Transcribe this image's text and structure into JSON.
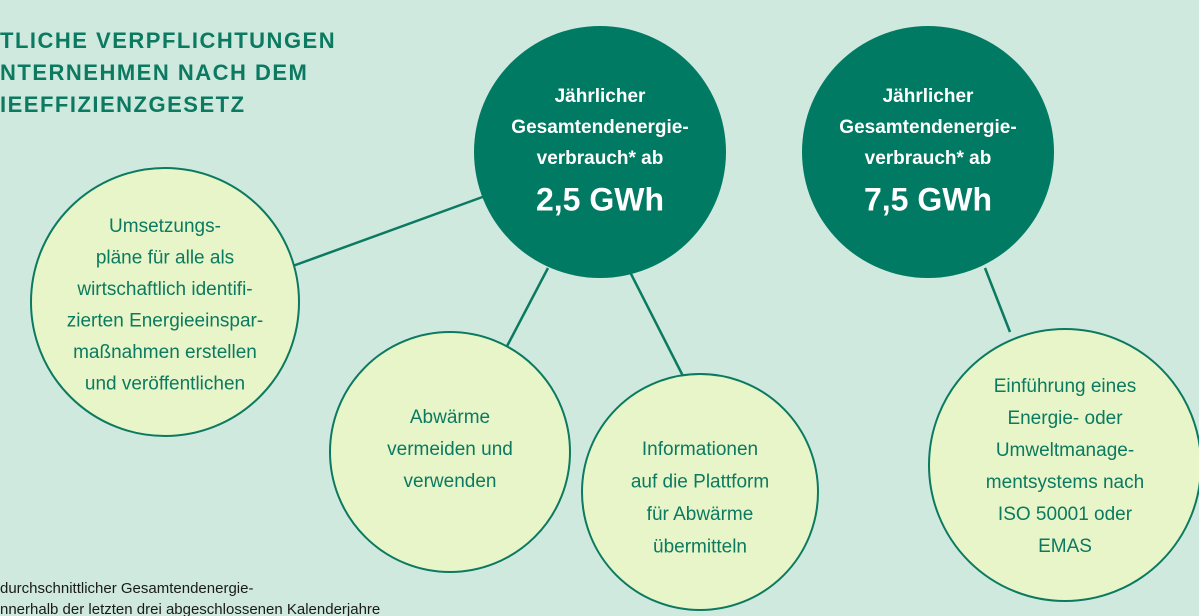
{
  "title": {
    "lines": [
      "TLICHE VERPFLICHTUNGEN",
      "NTERNEHMEN NACH DEM",
      "IEEFFIZIENZGESETZ"
    ]
  },
  "nodes": [
    {
      "lines": [
        "Jährlicher",
        "Gesamtendenergie-",
        "verbrauch* ab"
      ],
      "value": "2,5 GWh"
    },
    {
      "lines": [
        "Jährlicher",
        "Gesamtendenergie-",
        "verbrauch* ab"
      ],
      "value": "7,5 GWh"
    },
    {
      "lines": [
        "Umsetzungs-",
        "pläne für alle als",
        "wirtschaftlich identifi-",
        "zierten Energieeinspar-",
        "maßnahmen erstellen",
        "und veröffentlichen"
      ]
    },
    {
      "lines": [
        "Abwärme",
        "vermeiden und",
        "verwenden"
      ]
    },
    {
      "lines": [
        "Informationen",
        "auf die Plattform",
        "für Abwärme",
        "übermitteln"
      ]
    },
    {
      "lines": [
        "Einführung eines",
        "Energie- oder",
        "Umweltmanage-",
        "mentsystems nach",
        "ISO 50001 oder",
        "EMAS"
      ]
    }
  ],
  "footnote": {
    "lines": [
      "durchschnittlicher Gesamtendenergie-",
      "nnerhalb der letzten drei abgeschlossenen Kalenderjahre"
    ]
  }
}
